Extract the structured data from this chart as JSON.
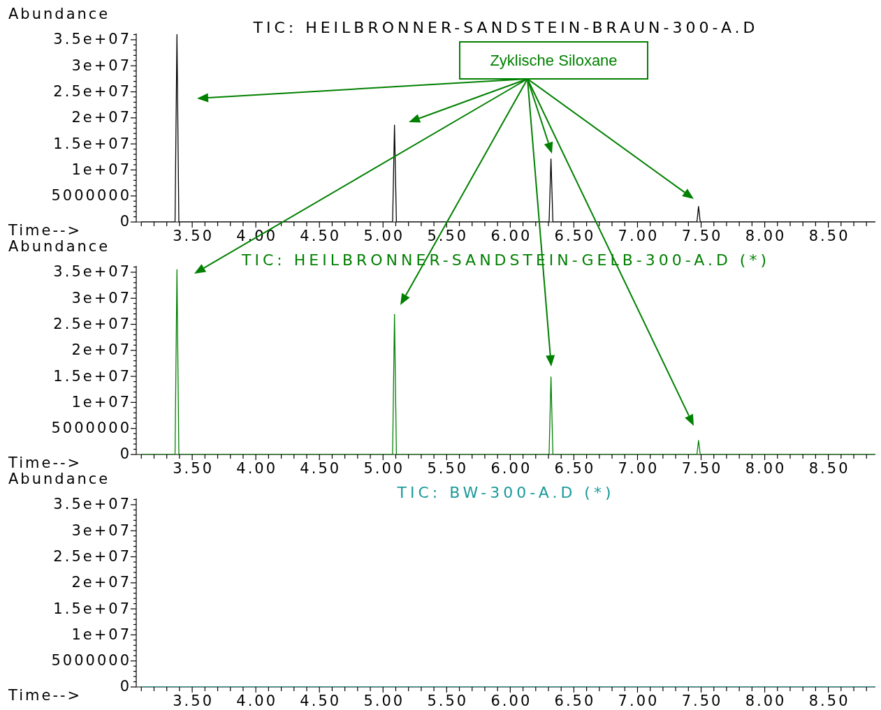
{
  "chart_data": [
    {
      "type": "line",
      "title": "TIC: HEILBRONNER-SANDSTEIN-BRAUN-300-A.D",
      "xlabel": "Time-->",
      "ylabel": "Abundance",
      "annotations": [
        "Zyklische Siloxane"
      ],
      "x": [
        3.1,
        3.365,
        3.38,
        3.395,
        5.075,
        5.09,
        5.105,
        6.305,
        6.32,
        6.335,
        7.467,
        7.48,
        7.493,
        8.87
      ],
      "series": [
        {
          "color": "#000000",
          "values": [
            0,
            0,
            36000000,
            0,
            0,
            18600000,
            0,
            0,
            12100000,
            0,
            0,
            3000000,
            0,
            0
          ]
        }
      ],
      "xlim": [
        3.06,
        8.87
      ],
      "ylim": [
        0,
        36200000
      ],
      "xticks": [
        {
          "value": 3.1,
          "label": null
        },
        {
          "value": 3.2,
          "label": null
        },
        {
          "value": 3.3,
          "label": null
        },
        {
          "value": 3.4,
          "label": null
        },
        {
          "value": 3.5,
          "label": "3.50"
        },
        {
          "value": 3.6,
          "label": null
        },
        {
          "value": 3.7,
          "label": null
        },
        {
          "value": 3.8,
          "label": null
        },
        {
          "value": 3.9,
          "label": null
        },
        {
          "value": 4.0,
          "label": "4.00"
        },
        {
          "value": 4.1,
          "label": null
        },
        {
          "value": 4.2,
          "label": null
        },
        {
          "value": 4.3,
          "label": null
        },
        {
          "value": 4.4,
          "label": null
        },
        {
          "value": 4.5,
          "label": "4.50"
        },
        {
          "value": 4.6,
          "label": null
        },
        {
          "value": 4.7,
          "label": null
        },
        {
          "value": 4.8,
          "label": null
        },
        {
          "value": 4.9,
          "label": null
        },
        {
          "value": 5.0,
          "label": "5.00"
        },
        {
          "value": 5.1,
          "label": null
        },
        {
          "value": 5.2,
          "label": null
        },
        {
          "value": 5.3,
          "label": null
        },
        {
          "value": 5.4,
          "label": null
        },
        {
          "value": 5.5,
          "label": "5.50"
        },
        {
          "value": 5.6,
          "label": null
        },
        {
          "value": 5.7,
          "label": null
        },
        {
          "value": 5.8,
          "label": null
        },
        {
          "value": 5.9,
          "label": null
        },
        {
          "value": 6.0,
          "label": "6.00"
        },
        {
          "value": 6.1,
          "label": null
        },
        {
          "value": 6.2,
          "label": null
        },
        {
          "value": 6.3,
          "label": null
        },
        {
          "value": 6.4,
          "label": null
        },
        {
          "value": 6.5,
          "label": "6.50"
        },
        {
          "value": 6.6,
          "label": null
        },
        {
          "value": 6.7,
          "label": null
        },
        {
          "value": 6.8,
          "label": null
        },
        {
          "value": 6.9,
          "label": null
        },
        {
          "value": 7.0,
          "label": "7.00"
        },
        {
          "value": 7.1,
          "label": null
        },
        {
          "value": 7.2,
          "label": null
        },
        {
          "value": 7.3,
          "label": null
        },
        {
          "value": 7.4,
          "label": null
        },
        {
          "value": 7.5,
          "label": "7.50"
        },
        {
          "value": 7.6,
          "label": null
        },
        {
          "value": 7.7,
          "label": null
        },
        {
          "value": 7.8,
          "label": null
        },
        {
          "value": 7.9,
          "label": null
        },
        {
          "value": 8.0,
          "label": "8.00"
        },
        {
          "value": 8.1,
          "label": null
        },
        {
          "value": 8.2,
          "label": null
        },
        {
          "value": 8.3,
          "label": null
        },
        {
          "value": 8.4,
          "label": null
        },
        {
          "value": 8.5,
          "label": "8.50"
        },
        {
          "value": 8.6,
          "label": null
        },
        {
          "value": 8.7,
          "label": null
        },
        {
          "value": 8.8,
          "label": null
        }
      ],
      "yticks": [
        {
          "value": 0,
          "label": "0"
        },
        {
          "value": 1000000,
          "label": null
        },
        {
          "value": 2000000,
          "label": null
        },
        {
          "value": 3000000,
          "label": null
        },
        {
          "value": 4000000,
          "label": null
        },
        {
          "value": 5000000,
          "label": "5000000"
        },
        {
          "value": 6000000,
          "label": null
        },
        {
          "value": 7000000,
          "label": null
        },
        {
          "value": 8000000,
          "label": null
        },
        {
          "value": 9000000,
          "label": null
        },
        {
          "value": 10000000,
          "label": "1e+07"
        },
        {
          "value": 11000000,
          "label": null
        },
        {
          "value": 12000000,
          "label": null
        },
        {
          "value": 13000000,
          "label": null
        },
        {
          "value": 14000000,
          "label": null
        },
        {
          "value": 15000000,
          "label": "1.5e+07"
        },
        {
          "value": 16000000,
          "label": null
        },
        {
          "value": 17000000,
          "label": null
        },
        {
          "value": 18000000,
          "label": null
        },
        {
          "value": 19000000,
          "label": null
        },
        {
          "value": 20000000,
          "label": "2e+07"
        },
        {
          "value": 21000000,
          "label": null
        },
        {
          "value": 22000000,
          "label": null
        },
        {
          "value": 23000000,
          "label": null
        },
        {
          "value": 24000000,
          "label": null
        },
        {
          "value": 25000000,
          "label": "2.5e+07"
        },
        {
          "value": 26000000,
          "label": null
        },
        {
          "value": 27000000,
          "label": null
        },
        {
          "value": 28000000,
          "label": null
        },
        {
          "value": 29000000,
          "label": null
        },
        {
          "value": 30000000,
          "label": "3e+07"
        },
        {
          "value": 31000000,
          "label": null
        },
        {
          "value": 32000000,
          "label": null
        },
        {
          "value": 33000000,
          "label": null
        },
        {
          "value": 34000000,
          "label": null
        },
        {
          "value": 35000000,
          "label": "3.5e+07"
        },
        {
          "value": 36000000,
          "label": null
        }
      ]
    },
    {
      "type": "line",
      "title": "TIC: HEILBRONNER-SANDSTEIN-GELB-300-A.D (*)",
      "xlabel": "Time-->",
      "ylabel": "Abundance",
      "x": [
        3.1,
        3.365,
        3.38,
        3.395,
        5.075,
        5.09,
        5.105,
        6.305,
        6.32,
        6.335,
        7.467,
        7.48,
        7.493,
        8.87
      ],
      "series": [
        {
          "color": "#008000",
          "values": [
            0,
            0,
            35500000,
            0,
            0,
            26900000,
            0,
            0,
            14900000,
            0,
            0,
            2700000,
            0,
            0
          ]
        }
      ],
      "xlim": [
        3.06,
        8.87
      ],
      "ylim": [
        0,
        36200000
      ],
      "xticks": [
        {
          "value": 3.1,
          "label": null
        },
        {
          "value": 3.2,
          "label": null
        },
        {
          "value": 3.3,
          "label": null
        },
        {
          "value": 3.4,
          "label": null
        },
        {
          "value": 3.5,
          "label": "3.50"
        },
        {
          "value": 3.6,
          "label": null
        },
        {
          "value": 3.7,
          "label": null
        },
        {
          "value": 3.8,
          "label": null
        },
        {
          "value": 3.9,
          "label": null
        },
        {
          "value": 4.0,
          "label": "4.00"
        },
        {
          "value": 4.1,
          "label": null
        },
        {
          "value": 4.2,
          "label": null
        },
        {
          "value": 4.3,
          "label": null
        },
        {
          "value": 4.4,
          "label": null
        },
        {
          "value": 4.5,
          "label": "4.50"
        },
        {
          "value": 4.6,
          "label": null
        },
        {
          "value": 4.7,
          "label": null
        },
        {
          "value": 4.8,
          "label": null
        },
        {
          "value": 4.9,
          "label": null
        },
        {
          "value": 5.0,
          "label": "5.00"
        },
        {
          "value": 5.1,
          "label": null
        },
        {
          "value": 5.2,
          "label": null
        },
        {
          "value": 5.3,
          "label": null
        },
        {
          "value": 5.4,
          "label": null
        },
        {
          "value": 5.5,
          "label": "5.50"
        },
        {
          "value": 5.6,
          "label": null
        },
        {
          "value": 5.7,
          "label": null
        },
        {
          "value": 5.8,
          "label": null
        },
        {
          "value": 5.9,
          "label": null
        },
        {
          "value": 6.0,
          "label": "6.00"
        },
        {
          "value": 6.1,
          "label": null
        },
        {
          "value": 6.2,
          "label": null
        },
        {
          "value": 6.3,
          "label": null
        },
        {
          "value": 6.4,
          "label": null
        },
        {
          "value": 6.5,
          "label": "6.50"
        },
        {
          "value": 6.6,
          "label": null
        },
        {
          "value": 6.7,
          "label": null
        },
        {
          "value": 6.8,
          "label": null
        },
        {
          "value": 6.9,
          "label": null
        },
        {
          "value": 7.0,
          "label": "7.00"
        },
        {
          "value": 7.1,
          "label": null
        },
        {
          "value": 7.2,
          "label": null
        },
        {
          "value": 7.3,
          "label": null
        },
        {
          "value": 7.4,
          "label": null
        },
        {
          "value": 7.5,
          "label": "7.50"
        },
        {
          "value": 7.6,
          "label": null
        },
        {
          "value": 7.7,
          "label": null
        },
        {
          "value": 7.8,
          "label": null
        },
        {
          "value": 7.9,
          "label": null
        },
        {
          "value": 8.0,
          "label": "8.00"
        },
        {
          "value": 8.1,
          "label": null
        },
        {
          "value": 8.2,
          "label": null
        },
        {
          "value": 8.3,
          "label": null
        },
        {
          "value": 8.4,
          "label": null
        },
        {
          "value": 8.5,
          "label": "8.50"
        },
        {
          "value": 8.6,
          "label": null
        },
        {
          "value": 8.7,
          "label": null
        },
        {
          "value": 8.8,
          "label": null
        }
      ],
      "yticks": [
        {
          "value": 0,
          "label": "0"
        },
        {
          "value": 1000000,
          "label": null
        },
        {
          "value": 2000000,
          "label": null
        },
        {
          "value": 3000000,
          "label": null
        },
        {
          "value": 4000000,
          "label": null
        },
        {
          "value": 5000000,
          "label": "5000000"
        },
        {
          "value": 6000000,
          "label": null
        },
        {
          "value": 7000000,
          "label": null
        },
        {
          "value": 8000000,
          "label": null
        },
        {
          "value": 9000000,
          "label": null
        },
        {
          "value": 10000000,
          "label": "1e+07"
        },
        {
          "value": 11000000,
          "label": null
        },
        {
          "value": 12000000,
          "label": null
        },
        {
          "value": 13000000,
          "label": null
        },
        {
          "value": 14000000,
          "label": null
        },
        {
          "value": 15000000,
          "label": "1.5e+07"
        },
        {
          "value": 16000000,
          "label": null
        },
        {
          "value": 17000000,
          "label": null
        },
        {
          "value": 18000000,
          "label": null
        },
        {
          "value": 19000000,
          "label": null
        },
        {
          "value": 20000000,
          "label": "2e+07"
        },
        {
          "value": 21000000,
          "label": null
        },
        {
          "value": 22000000,
          "label": null
        },
        {
          "value": 23000000,
          "label": null
        },
        {
          "value": 24000000,
          "label": null
        },
        {
          "value": 25000000,
          "label": "2.5e+07"
        },
        {
          "value": 26000000,
          "label": null
        },
        {
          "value": 27000000,
          "label": null
        },
        {
          "value": 28000000,
          "label": null
        },
        {
          "value": 29000000,
          "label": null
        },
        {
          "value": 30000000,
          "label": "3e+07"
        },
        {
          "value": 31000000,
          "label": null
        },
        {
          "value": 32000000,
          "label": null
        },
        {
          "value": 33000000,
          "label": null
        },
        {
          "value": 34000000,
          "label": null
        },
        {
          "value": 35000000,
          "label": "3.5e+07"
        },
        {
          "value": 36000000,
          "label": null
        }
      ]
    },
    {
      "type": "line",
      "title": "TIC: BW-300-A.D (*)",
      "xlabel": "Time-->",
      "ylabel": "Abundance",
      "x": [
        3.1,
        8.87
      ],
      "series": [
        {
          "color": "#1a9a9a",
          "values": [
            0,
            0
          ]
        }
      ],
      "xlim": [
        3.06,
        8.87
      ],
      "ylim": [
        0,
        36200000
      ],
      "xticks": [
        {
          "value": 3.1,
          "label": null
        },
        {
          "value": 3.2,
          "label": null
        },
        {
          "value": 3.3,
          "label": null
        },
        {
          "value": 3.4,
          "label": null
        },
        {
          "value": 3.5,
          "label": "3.50"
        },
        {
          "value": 3.6,
          "label": null
        },
        {
          "value": 3.7,
          "label": null
        },
        {
          "value": 3.8,
          "label": null
        },
        {
          "value": 3.9,
          "label": null
        },
        {
          "value": 4.0,
          "label": "4.00"
        },
        {
          "value": 4.1,
          "label": null
        },
        {
          "value": 4.2,
          "label": null
        },
        {
          "value": 4.3,
          "label": null
        },
        {
          "value": 4.4,
          "label": null
        },
        {
          "value": 4.5,
          "label": "4.50"
        },
        {
          "value": 4.6,
          "label": null
        },
        {
          "value": 4.7,
          "label": null
        },
        {
          "value": 4.8,
          "label": null
        },
        {
          "value": 4.9,
          "label": null
        },
        {
          "value": 5.0,
          "label": "5.00"
        },
        {
          "value": 5.1,
          "label": null
        },
        {
          "value": 5.2,
          "label": null
        },
        {
          "value": 5.3,
          "label": null
        },
        {
          "value": 5.4,
          "label": null
        },
        {
          "value": 5.5,
          "label": "5.50"
        },
        {
          "value": 5.6,
          "label": null
        },
        {
          "value": 5.7,
          "label": null
        },
        {
          "value": 5.8,
          "label": null
        },
        {
          "value": 5.9,
          "label": null
        },
        {
          "value": 6.0,
          "label": "6.00"
        },
        {
          "value": 6.1,
          "label": null
        },
        {
          "value": 6.2,
          "label": null
        },
        {
          "value": 6.3,
          "label": null
        },
        {
          "value": 6.4,
          "label": null
        },
        {
          "value": 6.5,
          "label": "6.50"
        },
        {
          "value": 6.6,
          "label": null
        },
        {
          "value": 6.7,
          "label": null
        },
        {
          "value": 6.8,
          "label": null
        },
        {
          "value": 6.9,
          "label": null
        },
        {
          "value": 7.0,
          "label": "7.00"
        },
        {
          "value": 7.1,
          "label": null
        },
        {
          "value": 7.2,
          "label": null
        },
        {
          "value": 7.3,
          "label": null
        },
        {
          "value": 7.4,
          "label": null
        },
        {
          "value": 7.5,
          "label": "7.50"
        },
        {
          "value": 7.6,
          "label": null
        },
        {
          "value": 7.7,
          "label": null
        },
        {
          "value": 7.8,
          "label": null
        },
        {
          "value": 7.9,
          "label": null
        },
        {
          "value": 8.0,
          "label": "8.00"
        },
        {
          "value": 8.1,
          "label": null
        },
        {
          "value": 8.2,
          "label": null
        },
        {
          "value": 8.3,
          "label": null
        },
        {
          "value": 8.4,
          "label": null
        },
        {
          "value": 8.5,
          "label": "8.50"
        },
        {
          "value": 8.6,
          "label": null
        },
        {
          "value": 8.7,
          "label": null
        },
        {
          "value": 8.8,
          "label": null
        }
      ],
      "yticks": [
        {
          "value": 0,
          "label": "0"
        },
        {
          "value": 1000000,
          "label": null
        },
        {
          "value": 2000000,
          "label": null
        },
        {
          "value": 3000000,
          "label": null
        },
        {
          "value": 4000000,
          "label": null
        },
        {
          "value": 5000000,
          "label": "5000000"
        },
        {
          "value": 6000000,
          "label": null
        },
        {
          "value": 7000000,
          "label": null
        },
        {
          "value": 8000000,
          "label": null
        },
        {
          "value": 9000000,
          "label": null
        },
        {
          "value": 10000000,
          "label": "1e+07"
        },
        {
          "value": 11000000,
          "label": null
        },
        {
          "value": 12000000,
          "label": null
        },
        {
          "value": 13000000,
          "label": null
        },
        {
          "value": 14000000,
          "label": null
        },
        {
          "value": 15000000,
          "label": "1.5e+07"
        },
        {
          "value": 16000000,
          "label": null
        },
        {
          "value": 17000000,
          "label": null
        },
        {
          "value": 18000000,
          "label": null
        },
        {
          "value": 19000000,
          "label": null
        },
        {
          "value": 20000000,
          "label": "2e+07"
        },
        {
          "value": 21000000,
          "label": null
        },
        {
          "value": 22000000,
          "label": null
        },
        {
          "value": 23000000,
          "label": null
        },
        {
          "value": 24000000,
          "label": null
        },
        {
          "value": 25000000,
          "label": "2.5e+07"
        },
        {
          "value": 26000000,
          "label": null
        },
        {
          "value": 27000000,
          "label": null
        },
        {
          "value": 28000000,
          "label": null
        },
        {
          "value": 29000000,
          "label": null
        },
        {
          "value": 30000000,
          "label": "3e+07"
        },
        {
          "value": 31000000,
          "label": null
        },
        {
          "value": 32000000,
          "label": null
        },
        {
          "value": 33000000,
          "label": null
        },
        {
          "value": 34000000,
          "label": null
        },
        {
          "value": 35000000,
          "label": "3.5e+07"
        },
        {
          "value": 36000000,
          "label": null
        }
      ]
    }
  ]
}
